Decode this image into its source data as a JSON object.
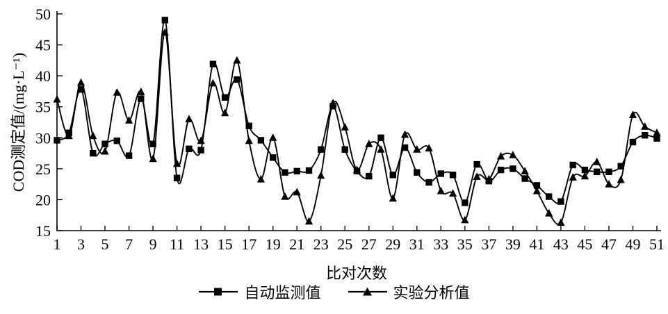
{
  "chart_data": {
    "type": "line",
    "title": "",
    "xlabel": "比对次数",
    "ylabel": "COD测定值/(mg·L⁻¹)",
    "xlim": [
      1,
      51
    ],
    "ylim": [
      15,
      50
    ],
    "x_ticks": [
      1,
      3,
      5,
      7,
      9,
      11,
      13,
      15,
      17,
      19,
      21,
      23,
      25,
      27,
      29,
      31,
      33,
      35,
      37,
      39,
      41,
      43,
      45,
      47,
      49,
      51
    ],
    "y_ticks": [
      15,
      20,
      25,
      30,
      35,
      40,
      45,
      50
    ],
    "grid": false,
    "legend_position": "bottom",
    "line_color": "#000000",
    "background_color": "#ffffff",
    "x": [
      1,
      2,
      3,
      4,
      5,
      6,
      7,
      8,
      9,
      10,
      11,
      12,
      13,
      14,
      15,
      16,
      17,
      18,
      19,
      20,
      21,
      22,
      23,
      24,
      25,
      26,
      27,
      28,
      29,
      30,
      31,
      32,
      33,
      34,
      35,
      36,
      37,
      38,
      39,
      40,
      41,
      42,
      43,
      44,
      45,
      46,
      47,
      48,
      49,
      50,
      51
    ],
    "series": [
      {
        "name": "自动监测值",
        "marker": "square",
        "values": [
          29.6,
          30.8,
          37.8,
          27.5,
          29.0,
          29.5,
          27.1,
          36.3,
          29.0,
          49.0,
          23.5,
          28.2,
          28.0,
          41.9,
          36.5,
          39.4,
          31.9,
          29.6,
          26.8,
          24.4,
          24.6,
          24.7,
          28.1,
          35.1,
          28.1,
          24.6,
          23.8,
          30.0,
          24.0,
          28.4,
          24.4,
          22.8,
          24.2,
          24.0,
          19.5,
          25.7,
          23.0,
          24.8,
          25.0,
          23.4,
          22.3,
          20.5,
          19.7,
          25.6,
          24.8,
          24.5,
          24.5,
          25.4,
          29.3,
          30.4,
          29.9
        ]
      },
      {
        "name": "实验分析值",
        "marker": "triangle",
        "values": [
          36.2,
          30.3,
          38.9,
          30.3,
          27.8,
          37.3,
          32.8,
          37.4,
          26.6,
          47.0,
          25.8,
          33.0,
          29.5,
          38.8,
          34.0,
          42.5,
          29.5,
          23.3,
          30.0,
          20.5,
          21.2,
          16.5,
          23.9,
          35.6,
          31.7,
          24.8,
          29.0,
          28.1,
          20.2,
          30.5,
          28.1,
          28.3,
          21.4,
          21.0,
          16.7,
          23.7,
          23.3,
          27.0,
          27.2,
          24.6,
          21.4,
          17.8,
          16.3,
          23.6,
          23.8,
          26.1,
          22.5,
          23.2,
          33.7,
          31.8,
          30.8
        ]
      }
    ]
  }
}
